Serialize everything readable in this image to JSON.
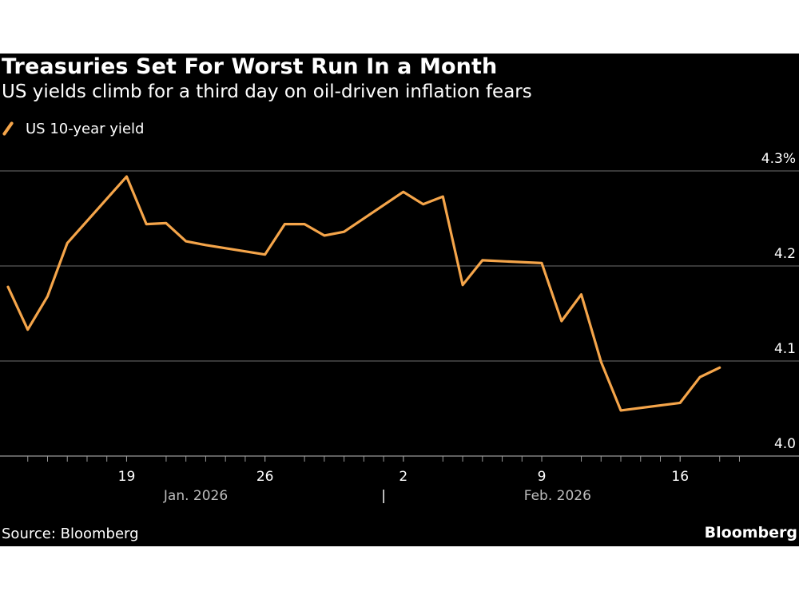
{
  "header": {
    "title": "Treasuries Set For Worst Run In a Month",
    "subtitle": "US yields climb for a third day on oil-driven inflation fears"
  },
  "footer": {
    "source": "Source: Bloomberg",
    "brand": "Bloomberg"
  },
  "colors": {
    "line": "#F5A54A",
    "background": "#000000",
    "grid": "#5a5a5a",
    "text": "#ffffff",
    "muted": "#bdbdbd"
  },
  "chart_data": {
    "type": "line",
    "title": "Treasuries Set For Worst Run In a Month",
    "subtitle": "US yields climb for a third day on oil-driven inflation fears",
    "xlabel": "",
    "ylabel": "",
    "ylim": [
      4.0,
      4.3
    ],
    "yticks": [
      4.0,
      4.1,
      4.2,
      4.3
    ],
    "ytick_labels": [
      "4.0",
      "4.1",
      "4.2",
      "4.3%"
    ],
    "grid": true,
    "legend_position": "top-left",
    "x_domain": [
      0,
      38.8
    ],
    "minor_ticks": [
      1,
      2,
      3,
      4,
      5,
      6,
      8,
      9,
      10,
      11,
      12,
      13,
      15,
      16,
      17,
      18,
      19,
      20,
      22,
      23,
      24,
      25,
      26,
      27,
      29,
      30,
      31,
      32,
      33,
      34,
      36,
      37
    ],
    "xticks": [
      {
        "x": 6,
        "label": "19"
      },
      {
        "x": 13,
        "label": "26"
      },
      {
        "x": 20,
        "label": "2"
      },
      {
        "x": 27,
        "label": "9"
      },
      {
        "x": 34,
        "label": "16"
      }
    ],
    "period_labels": [
      {
        "x": 9.5,
        "label": "Jan. 2026"
      },
      {
        "x": 19,
        "label": "|"
      },
      {
        "x": 27.8,
        "label": "Feb. 2026"
      }
    ],
    "series": [
      {
        "name": "US 10-year yield",
        "x": [
          0,
          1,
          2,
          3,
          6,
          7,
          8,
          9,
          10,
          13,
          14,
          15,
          16,
          17,
          20,
          21,
          22,
          23,
          24,
          27,
          28,
          29,
          30,
          31,
          34,
          35,
          36
        ],
        "values": [
          4.178,
          4.133,
          4.168,
          4.224,
          4.294,
          4.244,
          4.245,
          4.226,
          4.222,
          4.212,
          4.244,
          4.244,
          4.232,
          4.236,
          4.278,
          4.265,
          4.273,
          4.18,
          4.206,
          4.203,
          4.142,
          4.17,
          4.099,
          4.048,
          4.056,
          4.083,
          4.093
        ]
      }
    ]
  }
}
